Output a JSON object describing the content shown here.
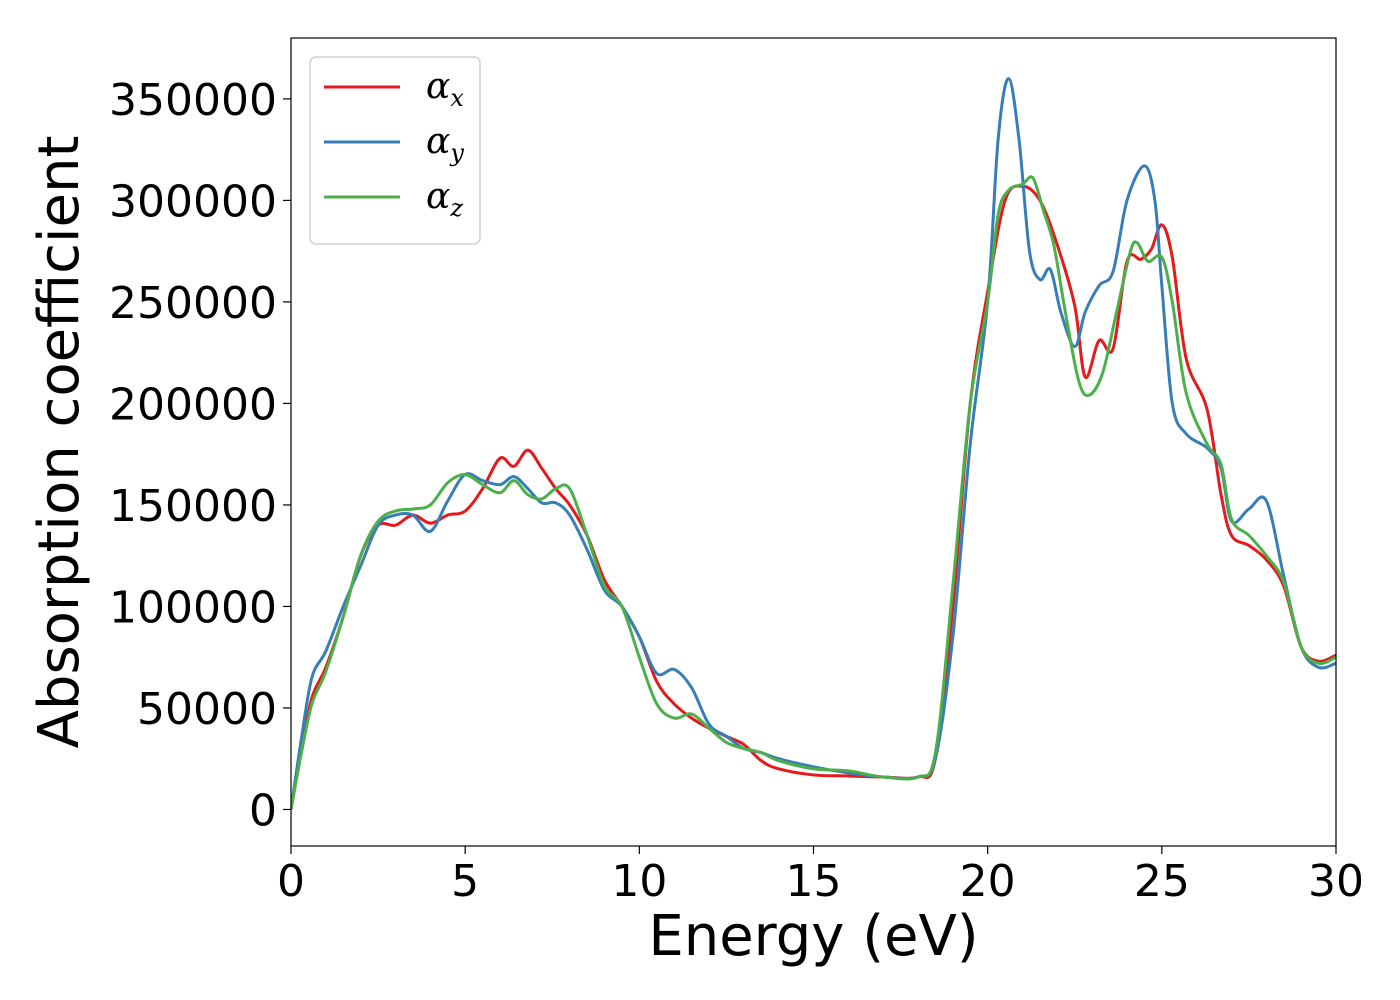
{
  "chart_data": {
    "type": "line",
    "title": "",
    "xlabel": "Energy (eV)",
    "ylabel": "Absorption coefficient",
    "xlim": [
      0,
      30
    ],
    "ylim": [
      -18000,
      380000
    ],
    "xticks": [
      0,
      5,
      10,
      15,
      20,
      25,
      30
    ],
    "yticks": [
      0,
      50000,
      100000,
      150000,
      200000,
      250000,
      300000,
      350000
    ],
    "grid": false,
    "legend_position": "top-left",
    "series": [
      {
        "name": "α",
        "subscript": "x",
        "color": "#e41a1c",
        "x": [
          0,
          0.3,
          0.6,
          1,
          1.5,
          2,
          2.5,
          3,
          3.5,
          4,
          4.5,
          5,
          5.5,
          6,
          6.4,
          6.8,
          7.2,
          7.6,
          8,
          8.5,
          9,
          9.5,
          10,
          10.5,
          11,
          11.5,
          12,
          12.5,
          13,
          13.5,
          14,
          15,
          16,
          17,
          18,
          18.5,
          19,
          19.5,
          20,
          20.5,
          21,
          21.5,
          22,
          22.5,
          22.8,
          23.2,
          23.6,
          24,
          24.4,
          24.7,
          25,
          25.3,
          25.7,
          26.3,
          26.7,
          27,
          27.5,
          28,
          28.5,
          29,
          29.5,
          30
        ],
        "y": [
          0,
          30000,
          55000,
          70000,
          95000,
          125000,
          140000,
          140000,
          145000,
          141000,
          145000,
          147000,
          158000,
          173000,
          169000,
          177000,
          168000,
          158000,
          150000,
          135000,
          113000,
          100000,
          85000,
          63000,
          52000,
          45000,
          40000,
          36000,
          32000,
          24000,
          20000,
          17000,
          16500,
          16000,
          16000,
          25000,
          100000,
          200000,
          255000,
          300000,
          307000,
          300000,
          278000,
          248000,
          213000,
          231000,
          227000,
          270000,
          271000,
          276000,
          288000,
          272000,
          222000,
          197000,
          155000,
          135000,
          130000,
          123000,
          110000,
          80000,
          73000,
          76000
        ]
      },
      {
        "name": "α",
        "subscript": "y",
        "color": "#377eb8",
        "x": [
          0,
          0.3,
          0.6,
          1,
          1.5,
          2,
          2.5,
          3,
          3.5,
          4,
          4.5,
          5,
          5.5,
          6,
          6.4,
          6.8,
          7.2,
          7.6,
          8,
          8.5,
          9,
          9.5,
          10,
          10.5,
          11,
          11.5,
          12,
          12.5,
          13,
          13.5,
          14,
          15,
          16,
          17,
          18,
          18.5,
          19,
          19.5,
          20,
          20.3,
          20.6,
          20.9,
          21.2,
          21.5,
          21.8,
          22.1,
          22.5,
          22.8,
          23.2,
          23.6,
          24,
          24.5,
          24.8,
          25,
          25.3,
          25.7,
          26.3,
          26.7,
          27,
          27.5,
          28,
          28.5,
          29,
          29.5,
          30
        ],
        "y": [
          0,
          35000,
          65000,
          78000,
          100000,
          120000,
          140000,
          145000,
          145000,
          137000,
          152000,
          165000,
          162000,
          160000,
          164000,
          158000,
          151000,
          151000,
          145000,
          128000,
          108000,
          100000,
          85000,
          67000,
          69000,
          60000,
          42000,
          36000,
          30000,
          28000,
          25000,
          21000,
          18000,
          16000,
          16000,
          25000,
          85000,
          180000,
          250000,
          330000,
          360000,
          330000,
          275000,
          261000,
          266000,
          245000,
          228000,
          245000,
          258000,
          265000,
          300000,
          317000,
          300000,
          258000,
          200000,
          185000,
          178000,
          168000,
          142000,
          148000,
          152000,
          115000,
          80000,
          70000,
          72000
        ]
      },
      {
        "name": "α",
        "subscript": "z",
        "color": "#4daf4a",
        "x": [
          0,
          0.3,
          0.6,
          1,
          1.5,
          2,
          2.5,
          3,
          3.5,
          4,
          4.5,
          5,
          5.5,
          6,
          6.4,
          6.8,
          7.2,
          7.6,
          8,
          8.5,
          9,
          9.5,
          10,
          10.5,
          11,
          11.5,
          12,
          12.5,
          13,
          13.5,
          14,
          15,
          16,
          17,
          18,
          18.5,
          19,
          19.5,
          20,
          20.3,
          20.6,
          21,
          21.3,
          21.6,
          21.9,
          22.2,
          22.6,
          22.9,
          23.3,
          23.7,
          24.1,
          24.3,
          24.6,
          25,
          25.3,
          25.7,
          26.3,
          26.7,
          27,
          27.5,
          28,
          28.5,
          29,
          29.5,
          30
        ],
        "y": [
          0,
          28000,
          52000,
          68000,
          95000,
          125000,
          142000,
          147000,
          148000,
          150000,
          161000,
          165000,
          160000,
          156000,
          162000,
          155000,
          153000,
          158000,
          158000,
          135000,
          110000,
          100000,
          75000,
          52000,
          45000,
          47000,
          40000,
          33000,
          30000,
          28000,
          24000,
          20000,
          19000,
          16000,
          16000,
          28000,
          110000,
          200000,
          250000,
          293000,
          305000,
          308000,
          311000,
          295000,
          278000,
          248000,
          212000,
          204000,
          215000,
          245000,
          275000,
          279000,
          270000,
          272000,
          250000,
          205000,
          180000,
          170000,
          143000,
          135000,
          125000,
          112000,
          80000,
          72000,
          75000
        ]
      }
    ]
  }
}
